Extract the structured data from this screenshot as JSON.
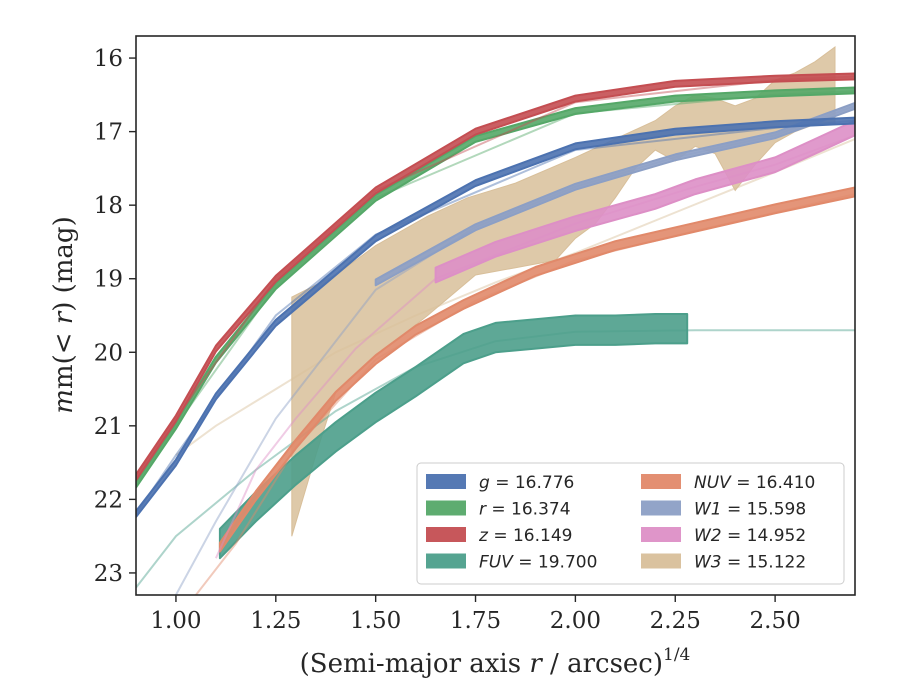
{
  "chart_data": {
    "type": "line",
    "title": "",
    "xlabel_main": "(Semi-major axis ",
    "xlabel_var": "r",
    "xlabel_tail": " / arcsec)",
    "xlabel_exp": "1/4",
    "ylabel_pre": "m(< ",
    "ylabel_var": "r",
    "ylabel_post": ") (mag)",
    "xlim": [
      0.9,
      2.7
    ],
    "ylim": [
      23.3,
      15.7
    ],
    "y_inverted": true,
    "grid": false,
    "legend_position": "lower-right",
    "xticks": [
      1.0,
      1.25,
      1.5,
      1.75,
      2.0,
      2.25,
      2.5
    ],
    "xtick_labels": [
      "1.00",
      "1.25",
      "1.50",
      "1.75",
      "2.00",
      "2.25",
      "2.50"
    ],
    "yticks": [
      16,
      17,
      18,
      19,
      20,
      21,
      22,
      23
    ],
    "ytick_labels": [
      "16",
      "17",
      "18",
      "19",
      "20",
      "21",
      "22",
      "23"
    ],
    "series": [
      {
        "band": "g",
        "value": "16.776",
        "color": "#4c72b0",
        "data_x": [
          0.9,
          1.0,
          1.1,
          1.25,
          1.5,
          1.75,
          2.0,
          2.25,
          2.5,
          2.7
        ],
        "data_y": [
          22.2,
          21.5,
          20.6,
          19.6,
          18.45,
          17.7,
          17.2,
          17.0,
          16.9,
          16.85
        ],
        "data_hw": 0.04,
        "model_x": [
          0.9,
          1.0,
          1.25,
          1.5,
          2.0,
          2.5,
          2.7
        ],
        "model_y": [
          22.2,
          21.4,
          19.5,
          18.4,
          17.25,
          16.95,
          16.85
        ]
      },
      {
        "band": "r",
        "value": "16.374",
        "color": "#55a868",
        "data_x": [
          0.9,
          1.0,
          1.1,
          1.25,
          1.5,
          1.75,
          2.0,
          2.25,
          2.5,
          2.7
        ],
        "data_y": [
          21.8,
          21.0,
          20.1,
          19.1,
          17.9,
          17.1,
          16.72,
          16.55,
          16.48,
          16.44
        ],
        "data_hw": 0.04,
        "model_x": [
          0.9,
          1.0,
          1.25,
          1.5,
          2.0,
          2.5,
          2.7
        ],
        "model_y": [
          21.8,
          21.0,
          19.1,
          17.9,
          16.75,
          16.5,
          16.45
        ]
      },
      {
        "band": "z",
        "value": "16.149",
        "color": "#c44e52",
        "data_x": [
          0.9,
          1.0,
          1.1,
          1.25,
          1.5,
          1.75,
          2.0,
          2.25,
          2.5,
          2.7
        ],
        "data_y": [
          21.7,
          20.9,
          19.95,
          19.0,
          17.8,
          17.0,
          16.55,
          16.35,
          16.28,
          16.25
        ],
        "data_hw": 0.04,
        "model_x": [
          0.9,
          1.0,
          1.25,
          1.5,
          2.0,
          2.5,
          2.7
        ],
        "model_y": [
          21.7,
          20.9,
          19.0,
          17.8,
          16.6,
          16.3,
          16.25
        ]
      },
      {
        "band": "FUV",
        "value": "19.700",
        "color": "#4c9f8b",
        "data_x": [
          1.11,
          1.2,
          1.3,
          1.4,
          1.5,
          1.6,
          1.72,
          1.8,
          1.9,
          2.0,
          2.1,
          2.2,
          2.28
        ],
        "data_y": [
          22.6,
          22.1,
          21.6,
          21.15,
          20.75,
          20.4,
          19.95,
          19.8,
          19.75,
          19.7,
          19.7,
          19.68,
          19.68
        ],
        "data_hw": 0.2,
        "model_x": [
          0.9,
          1.0,
          1.2,
          1.4,
          1.6,
          1.8,
          2.0,
          2.3,
          2.7
        ],
        "model_y": [
          23.2,
          22.5,
          21.6,
          20.8,
          20.2,
          19.85,
          19.72,
          19.7,
          19.7
        ]
      },
      {
        "band": "NUV",
        "value": "16.410",
        "color": "#e1896a",
        "data_x": [
          1.11,
          1.2,
          1.3,
          1.4,
          1.5,
          1.6,
          1.72,
          1.9,
          2.1,
          2.3,
          2.5,
          2.7
        ],
        "data_y": [
          22.65,
          21.95,
          21.25,
          20.6,
          20.1,
          19.7,
          19.35,
          18.9,
          18.55,
          18.3,
          18.05,
          17.82
        ],
        "data_hw": 0.06,
        "model_x": [
          1.05,
          1.15,
          1.3,
          1.5,
          1.75,
          2.0,
          2.3,
          2.7
        ],
        "model_y": [
          23.3,
          22.6,
          21.3,
          20.1,
          19.3,
          18.75,
          18.35,
          17.85
        ]
      },
      {
        "band": "W1",
        "value": "15.598",
        "color": "#8c9fc5",
        "data_x": [
          1.5,
          1.75,
          2.0,
          2.25,
          2.5,
          2.7
        ],
        "data_y": [
          19.05,
          18.3,
          17.75,
          17.35,
          17.05,
          16.65
        ],
        "data_hw": 0.04,
        "model_x": [
          1.0,
          1.1,
          1.25,
          1.5,
          1.75,
          2.0,
          2.25,
          2.5,
          2.7
        ],
        "model_y": [
          23.3,
          22.3,
          20.9,
          19.15,
          18.3,
          17.75,
          17.35,
          17.05,
          16.65
        ]
      },
      {
        "band": "W2",
        "value": "14.952",
        "color": "#dd8fc6",
        "data_x": [
          1.65,
          1.8,
          2.0,
          2.2,
          2.3,
          2.4,
          2.5,
          2.6,
          2.7
        ],
        "data_y": [
          18.95,
          18.6,
          18.25,
          17.95,
          17.75,
          17.6,
          17.45,
          17.2,
          16.95
        ],
        "data_hw": 0.1,
        "model_x": [
          1.1,
          1.2,
          1.3,
          1.45,
          1.65,
          2.0,
          2.3,
          2.5,
          2.7
        ],
        "model_y": [
          22.8,
          21.6,
          20.9,
          19.95,
          19.0,
          18.25,
          17.75,
          17.45,
          17.05
        ]
      },
      {
        "band": "W3",
        "value": "15.122",
        "color": "#d8bf9a",
        "upper_x": [
          1.29,
          1.4,
          1.5,
          1.63,
          1.73,
          1.85,
          2.0,
          2.1,
          2.2,
          2.25,
          2.3,
          2.35,
          2.4,
          2.45,
          2.5,
          2.55,
          2.6,
          2.65
        ],
        "upper_y": [
          19.25,
          18.95,
          18.55,
          18.15,
          17.9,
          17.7,
          17.35,
          17.1,
          16.85,
          16.65,
          16.5,
          16.55,
          16.65,
          16.55,
          16.3,
          16.2,
          16.05,
          15.85
        ],
        "lower_x": [
          2.65,
          2.6,
          2.55,
          2.5,
          2.45,
          2.4,
          2.35,
          2.3,
          2.25,
          2.2,
          2.15,
          2.1,
          2.05,
          2.0,
          1.95,
          1.85,
          1.75,
          1.63,
          1.5,
          1.4,
          1.35,
          1.29
        ],
        "lower_y": [
          16.9,
          16.9,
          17.0,
          17.15,
          17.45,
          17.8,
          17.3,
          17.2,
          17.4,
          17.25,
          17.5,
          17.9,
          18.25,
          18.45,
          18.75,
          18.85,
          18.95,
          19.5,
          20.05,
          20.55,
          21.4,
          22.5
        ],
        "model_x": [
          1.0,
          1.1,
          1.25,
          1.4,
          1.6,
          1.8,
          2.0,
          2.25,
          2.5,
          2.7
        ],
        "model_y": [
          21.4,
          21.0,
          20.5,
          20.0,
          19.5,
          19.05,
          18.65,
          18.1,
          17.55,
          17.1
        ]
      }
    ]
  }
}
